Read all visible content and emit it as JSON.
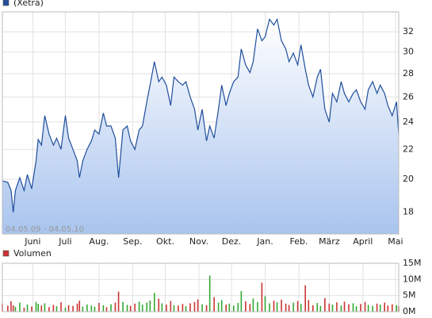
{
  "chart_data": [
    {
      "type": "line",
      "subtitle": "04.05.09 - 04.05.10",
      "log": true,
      "grid": true,
      "x": [
        0,
        5,
        8,
        10,
        12,
        16,
        20,
        23,
        27,
        31,
        33,
        36,
        39,
        43,
        47,
        50,
        54,
        58,
        61,
        65,
        69,
        71,
        74,
        78,
        82,
        85,
        89,
        93,
        96,
        100,
        104,
        107,
        111,
        115,
        118,
        122,
        126,
        129,
        133,
        136,
        140,
        144,
        147,
        151,
        155,
        158,
        162,
        166,
        169,
        173,
        177,
        180,
        184,
        188,
        191,
        195,
        199,
        202,
        206,
        209,
        213,
        217,
        220,
        224,
        228,
        231,
        235,
        239,
        242,
        246,
        250,
        253,
        257,
        261,
        264,
        268,
        272,
        275,
        279,
        282,
        286,
        290,
        293,
        297,
        301,
        304,
        308,
        312,
        315,
        319,
        323,
        326,
        330,
        334,
        337,
        341,
        345,
        348,
        352,
        355,
        359,
        363,
        365
      ],
      "series": [
        {
          "name": "(Xetra)",
          "color": "#1f4e9c",
          "values": [
            19.9,
            19.8,
            19.3,
            18.0,
            19.3,
            20.1,
            19.3,
            20.3,
            19.4,
            21.2,
            22.7,
            22.3,
            24.5,
            23.1,
            22.3,
            22.8,
            22.0,
            24.5,
            22.8,
            22.0,
            21.2,
            20.1,
            21.2,
            22.0,
            22.6,
            23.4,
            23.1,
            24.7,
            23.7,
            23.7,
            22.8,
            20.1,
            23.4,
            23.7,
            22.6,
            22.0,
            23.4,
            23.7,
            25.6,
            27.0,
            29.1,
            27.3,
            27.7,
            27.0,
            25.3,
            27.7,
            27.3,
            27.0,
            27.3,
            26.0,
            25.0,
            23.4,
            25.0,
            22.6,
            23.7,
            22.8,
            25.0,
            27.0,
            25.3,
            26.3,
            27.3,
            27.7,
            30.3,
            28.8,
            28.1,
            29.1,
            32.3,
            31.1,
            31.5,
            33.3,
            32.7,
            33.3,
            31.1,
            30.3,
            29.1,
            29.9,
            28.8,
            30.7,
            28.4,
            27.0,
            26.0,
            27.7,
            28.4,
            25.0,
            24.0,
            26.3,
            25.6,
            27.3,
            26.3,
            25.6,
            26.3,
            26.6,
            25.6,
            25.0,
            26.6,
            27.3,
            26.3,
            27.0,
            26.3,
            25.3,
            24.5,
            25.6,
            23.1
          ]
        }
      ],
      "xlim": [
        0,
        365
      ],
      "xticks": [
        {
          "value": 28,
          "label": "Juni"
        },
        {
          "value": 58,
          "label": "Juli"
        },
        {
          "value": 89,
          "label": "Aug."
        },
        {
          "value": 120,
          "label": "Sep."
        },
        {
          "value": 150,
          "label": "Okt."
        },
        {
          "value": 181,
          "label": "Nov."
        },
        {
          "value": 211,
          "label": "Dez."
        },
        {
          "value": 242,
          "label": "Jan."
        },
        {
          "value": 273,
          "label": "Feb."
        },
        {
          "value": 301,
          "label": "März"
        },
        {
          "value": 332,
          "label": "April"
        },
        {
          "value": 362,
          "label": "Mai"
        }
      ],
      "ylim": [
        16.8,
        34.1
      ],
      "yticks": [
        18,
        20,
        22,
        24,
        26,
        28,
        30,
        32
      ]
    },
    {
      "type": "bar",
      "grid": true,
      "up_color": "#33aa33",
      "series": [
        {
          "name": "Volumen",
          "color": "#cc3333",
          "values": [
            2.5,
            1.8,
            3.2,
            2.0,
            1.5,
            2.8,
            1.2,
            2.2,
            1.6,
            3.0,
            2.4,
            1.9,
            2.6,
            1.4,
            2.1,
            1.7,
            2.9,
            1.3,
            2.0,
            1.8,
            2.5,
            3.4,
            1.6,
            2.2,
            1.9,
            1.5,
            2.7,
            2.0,
            1.4,
            2.3,
            2.8,
            6.2,
            3.0,
            2.1,
            1.8,
            2.5,
            3.1,
            2.2,
            2.8,
            3.5,
            5.8,
            4.0,
            2.6,
            2.2,
            3.3,
            2.0,
            1.9,
            2.4,
            1.7,
            2.6,
            3.0,
            3.8,
            2.3,
            2.0,
            11.2,
            4.5,
            2.8,
            3.6,
            2.2,
            2.5,
            1.9,
            2.7,
            6.4,
            3.2,
            2.4,
            4.1,
            3.0,
            9.0,
            4.8,
            2.6,
            3.4,
            2.9,
            3.7,
            2.5,
            2.1,
            2.8,
            3.3,
            2.4,
            8.2,
            3.6,
            2.0,
            2.7,
            1.8,
            4.2,
            2.5,
            2.2,
            2.9,
            1.9,
            3.1,
            2.3,
            2.6,
            1.7,
            2.4,
            3.0,
            2.1,
            1.8,
            2.5,
            2.2,
            2.8,
            1.9,
            2.3,
            2.0,
            1.6
          ]
        }
      ],
      "ylim": [
        0,
        15
      ],
      "yticks": [
        {
          "value": 0,
          "label": "0M"
        },
        {
          "value": 5,
          "label": "5M"
        },
        {
          "value": 10,
          "label": "10M"
        },
        {
          "value": 15,
          "label": "15M"
        }
      ]
    }
  ]
}
